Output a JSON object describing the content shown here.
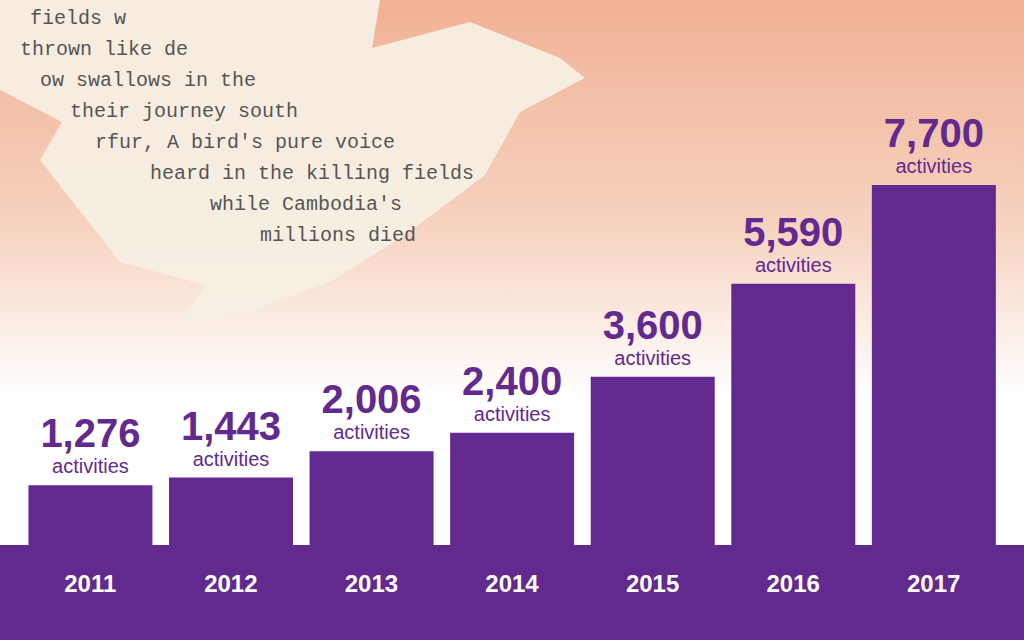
{
  "chart_data": {
    "type": "bar",
    "categories": [
      "2011",
      "2012",
      "2013",
      "2014",
      "2015",
      "2016",
      "2017"
    ],
    "values": [
      1276,
      1443,
      2006,
      2400,
      3600,
      5590,
      7700
    ],
    "value_labels": [
      "1,276 activities",
      "1,443 activities",
      "2,006 activities",
      "2,400 activities",
      "3,600 activities",
      "5,590 activities",
      "7,700 activities"
    ],
    "data_labels": true,
    "color": "#62298e",
    "ylim": [
      0,
      7700
    ],
    "tick_labels": "x",
    "annotations": [
      "fields w",
      "thrown like de",
      "ow swallows in the",
      "their journey south",
      "rfur, A bird's pure voice",
      "heard in the killing fields",
      "while Cambodia's",
      "millions died"
    ]
  }
}
